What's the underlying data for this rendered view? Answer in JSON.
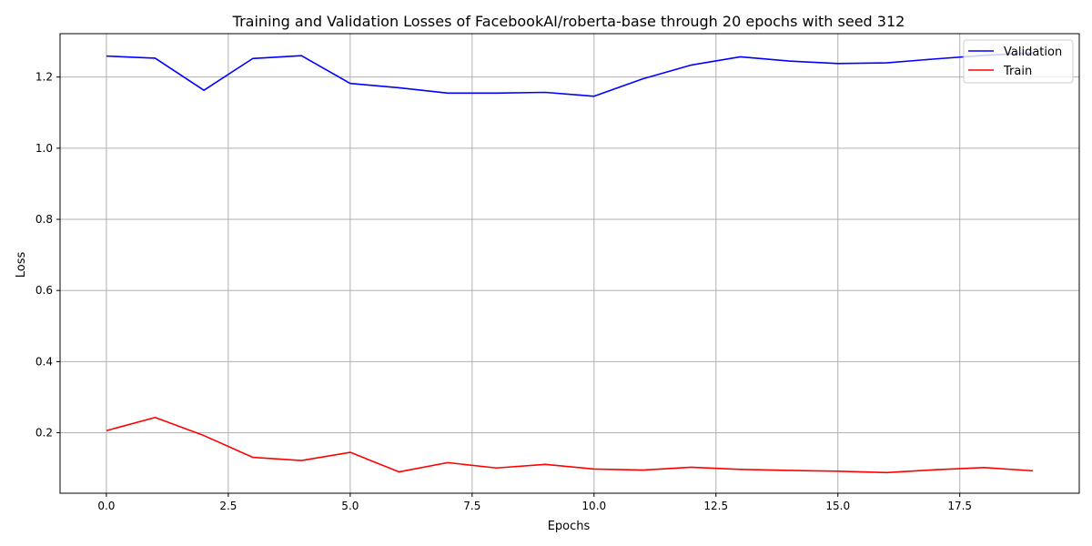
{
  "chart_data": {
    "type": "line",
    "title": "Training and Validation Losses of FacebookAI/roberta-base through 20 epochs with seed 312",
    "xlabel": "Epochs",
    "ylabel": "Loss",
    "x": [
      0,
      1,
      2,
      3,
      4,
      5,
      6,
      7,
      8,
      9,
      10,
      11,
      12,
      13,
      14,
      15,
      16,
      17,
      18,
      19
    ],
    "xlim": [
      -0.95,
      19.95
    ],
    "ylim": [
      0.03,
      1.322
    ],
    "xticks": [
      0.0,
      2.5,
      5.0,
      7.5,
      10.0,
      12.5,
      15.0,
      17.5
    ],
    "xtick_labels": [
      "0.0",
      "2.5",
      "5.0",
      "7.5",
      "10.0",
      "12.5",
      "15.0",
      "17.5"
    ],
    "yticks": [
      0.2,
      0.4,
      0.6,
      0.8,
      1.0,
      1.2
    ],
    "ytick_labels": [
      "0.2",
      "0.4",
      "0.6",
      "0.8",
      "1.0",
      "1.2"
    ],
    "grid": true,
    "legend_position": "top-right",
    "series": [
      {
        "name": "Validation",
        "color": "#0000ff",
        "values": [
          1.259,
          1.253,
          1.163,
          1.252,
          1.26,
          1.182,
          1.17,
          1.155,
          1.155,
          1.157,
          1.146,
          1.195,
          1.234,
          1.257,
          1.245,
          1.238,
          1.24,
          1.251,
          1.261,
          1.268
        ]
      },
      {
        "name": "Train",
        "color": "#ff0000",
        "values": [
          0.206,
          0.243,
          0.192,
          0.131,
          0.122,
          0.145,
          0.09,
          0.116,
          0.101,
          0.111,
          0.098,
          0.095,
          0.103,
          0.097,
          0.094,
          0.092,
          0.088,
          0.096,
          0.102,
          0.093
        ]
      }
    ]
  }
}
